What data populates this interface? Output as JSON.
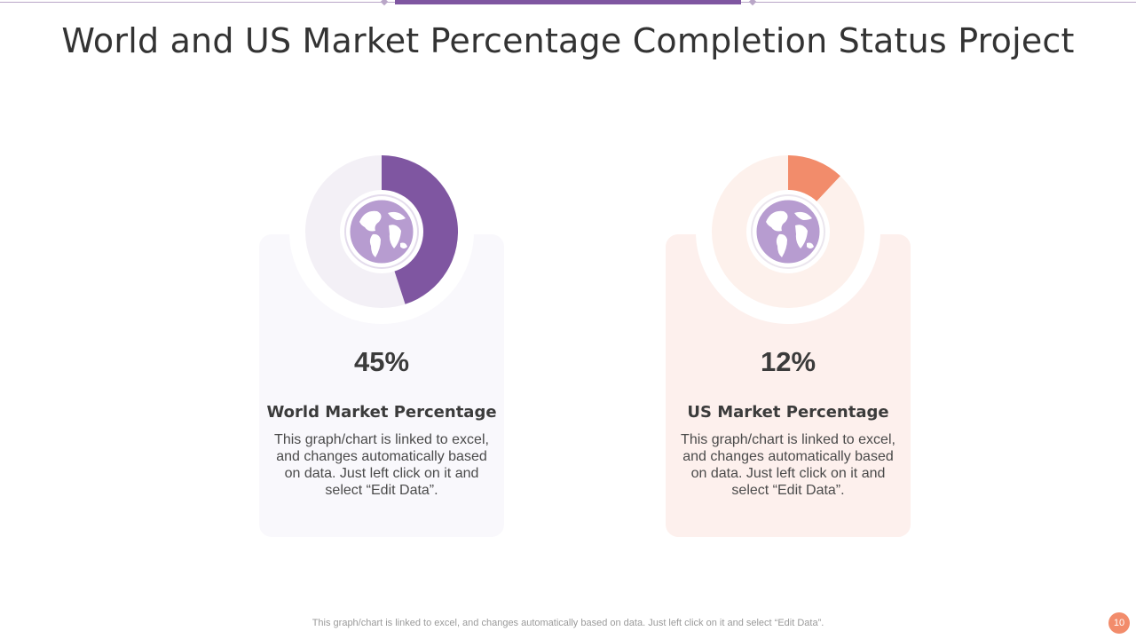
{
  "title": "World and US Market Percentage Completion Status Project",
  "colors": {
    "accent_purple": "#7f56a1",
    "accent_orange": "#f28c6b",
    "globe_purple": "#b79cd0"
  },
  "cards": [
    {
      "percent_label": "45%",
      "label": "World Market Percentage",
      "description": "This graph/chart is linked to excel, and changes automatically based on data. Just left click on it and select “Edit Data”.",
      "icon": "globe-icon"
    },
    {
      "percent_label": "12%",
      "label": "US Market Percentage",
      "description": "This graph/chart is linked to excel, and changes automatically based on data. Just left click on it and select “Edit Data”.",
      "icon": "globe-icon"
    }
  ],
  "chart_data": [
    {
      "type": "pie",
      "categories": [
        "World Market Percentage",
        ""
      ],
      "values": [
        45,
        55
      ],
      "colors": [
        "#7f56a1",
        "#f3f0f6"
      ]
    },
    {
      "type": "pie",
      "categories": [
        "US Market Percentage",
        ""
      ],
      "values": [
        12,
        88
      ],
      "colors": [
        "#f28c6b",
        "#fdf1ec"
      ]
    }
  ],
  "footer": {
    "text": "This graph/chart is linked to excel,  and changes automatically based on data. Just left click on it and select “Edit Data”.",
    "page_number": "10"
  }
}
